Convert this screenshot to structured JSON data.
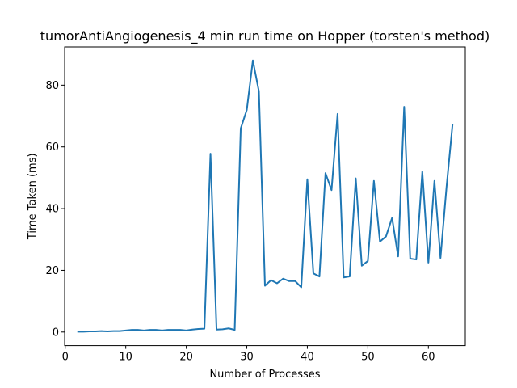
{
  "chart_data": {
    "type": "line",
    "title": "tumorAntiAngiogenesis_4 min run time on Hopper (torsten's method)",
    "xlabel": "Number of Processes",
    "ylabel": "Time Taken (ms)",
    "xlim": [
      -0.1,
      66.1
    ],
    "ylim": [
      -4.4,
      92.4
    ],
    "xticks": [
      0,
      10,
      20,
      30,
      40,
      50,
      60
    ],
    "yticks": [
      0,
      20,
      40,
      60,
      80
    ],
    "grid": false,
    "line_color": "#1f77b4",
    "series": [
      {
        "x": [
          2,
          3,
          4,
          5,
          6,
          7,
          8,
          9,
          10,
          11,
          12,
          13,
          14,
          15,
          16,
          17,
          18,
          19,
          20,
          21,
          22,
          23,
          24,
          25,
          26,
          27,
          28,
          29,
          30,
          31,
          32,
          33,
          34,
          35,
          36,
          37,
          38,
          39,
          40,
          41,
          42,
          43,
          44,
          45,
          46,
          47,
          48,
          49,
          50,
          51,
          52,
          53,
          54,
          55,
          56,
          57,
          58,
          59,
          60,
          61,
          62,
          63,
          64
        ],
        "values": [
          0.1,
          0.1,
          0.2,
          0.2,
          0.3,
          0.2,
          0.3,
          0.3,
          0.5,
          0.7,
          0.7,
          0.5,
          0.7,
          0.7,
          0.5,
          0.7,
          0.7,
          0.7,
          0.5,
          0.8,
          1.0,
          1.1,
          57.8,
          0.8,
          0.9,
          1.2,
          0.7,
          66.0,
          72.0,
          88.0,
          78.0,
          15.0,
          16.8,
          15.8,
          17.3,
          16.5,
          16.5,
          14.5,
          49.5,
          19.0,
          18.0,
          51.5,
          46.0,
          70.7,
          17.7,
          18.0,
          49.8,
          21.5,
          23.0,
          49.0,
          29.3,
          31.0,
          37.0,
          24.5,
          73.0,
          23.8,
          23.5,
          52.0,
          22.5,
          49.0,
          24.0,
          47.0,
          67.5
        ]
      }
    ]
  }
}
